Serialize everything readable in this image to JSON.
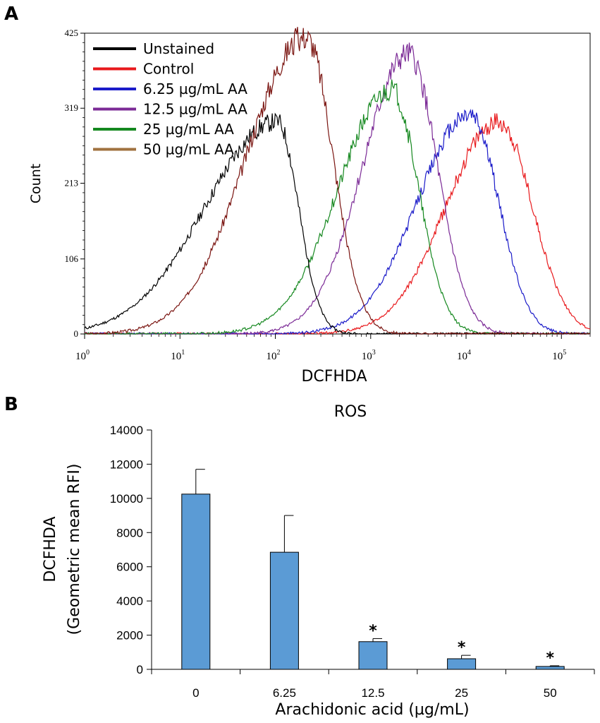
{
  "panel_a_letter": "A",
  "panel_b_letter": "B",
  "chart_data": [
    {
      "type": "line",
      "panel": "A",
      "title": "",
      "xlabel": "DCFHDA",
      "ylabel": "Count",
      "xscale": "log",
      "xlim": [
        1,
        200000
      ],
      "ylim": [
        0,
        425
      ],
      "y_ticks": [
        "0",
        "106",
        "213",
        "319",
        "425"
      ],
      "x_ticks": [
        {
          "base": "10",
          "exp": "0"
        },
        {
          "base": "10",
          "exp": "1"
        },
        {
          "base": "10",
          "exp": "2"
        },
        {
          "base": "10",
          "exp": "3"
        },
        {
          "base": "10",
          "exp": "4"
        },
        {
          "base": "10",
          "exp": "5"
        }
      ],
      "legend_position": "top-left",
      "series": [
        {
          "name": "Unstained",
          "color": "#000000",
          "log_mu": 2.0,
          "sigma_left": 0.75,
          "sigma_right": 0.22,
          "peak": 300,
          "peak_x": 105,
          "seed": 11
        },
        {
          "name": "Control",
          "color": "#e8191c",
          "log_mu": 4.35,
          "sigma_left": 0.55,
          "sigma_right": 0.35,
          "peak": 300,
          "peak_x": 22000,
          "seed": 23
        },
        {
          "name": "6.25 µg/mL AA",
          "color": "#1b1bc9",
          "log_mu": 4.05,
          "sigma_left": 0.55,
          "sigma_right": 0.3,
          "peak": 310,
          "peak_x": 11000,
          "seed": 37
        },
        {
          "name": "12.5 µg/mL AA",
          "color": "#7b2a96",
          "log_mu": 3.4,
          "sigma_left": 0.48,
          "sigma_right": 0.3,
          "peak": 395,
          "peak_x": 2500,
          "seed": 41
        },
        {
          "name": "25 µg/mL AA",
          "color": "#15881f",
          "log_mu": 3.22,
          "sigma_left": 0.55,
          "sigma_right": 0.28,
          "peak": 345,
          "peak_x": 1650,
          "seed": 53
        },
        {
          "name": "50 µg/mL AA",
          "color": "#a0723f",
          "log_mu": 2.32,
          "sigma_left": 0.62,
          "sigma_right": 0.28,
          "peak": 420,
          "peak_x": 210,
          "seed": 67
        }
      ],
      "overlay_series": {
        "name": "50 µg/mL AA (plotted)",
        "color": "#7a1410"
      }
    },
    {
      "type": "bar",
      "panel": "B",
      "title": "ROS",
      "xlabel": "Arachidonic acid (µg/mL)",
      "ylabel_line1": "DCFHDA",
      "ylabel_line2": "(Geometric mean RFI)",
      "ylim": [
        0,
        14000
      ],
      "y_ticks": [
        "0",
        "2000",
        "4000",
        "6000",
        "8000",
        "10000",
        "12000",
        "14000"
      ],
      "categories": [
        "0",
        "6.25",
        "12.5",
        "25",
        "50"
      ],
      "values": [
        10250,
        6850,
        1620,
        620,
        170
      ],
      "errors": [
        1450,
        2150,
        180,
        200,
        40
      ],
      "significance": [
        "",
        "",
        "*",
        "*",
        "*"
      ],
      "bar_color": "#5b9bd5"
    }
  ]
}
